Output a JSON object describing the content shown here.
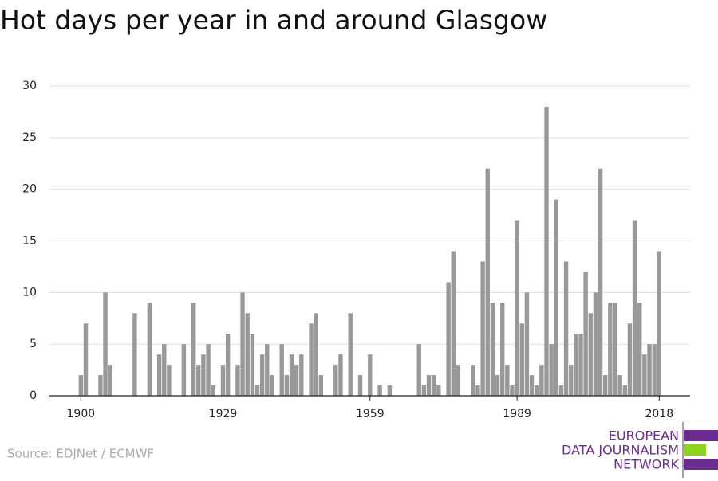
{
  "chart_data": {
    "type": "bar",
    "title": "Hot days per year in and around Glasgow",
    "source": "Source: EDJNet / ECMWF",
    "logo": [
      "EUROPEAN",
      "DATA JOURNALISM",
      "NETWORK"
    ],
    "color": "#999999",
    "grid": true,
    "x": [
      1900,
      1901,
      1902,
      1903,
      1904,
      1905,
      1906,
      1907,
      1908,
      1909,
      1910,
      1911,
      1912,
      1913,
      1914,
      1915,
      1916,
      1917,
      1918,
      1919,
      1920,
      1921,
      1922,
      1923,
      1924,
      1925,
      1926,
      1927,
      1928,
      1929,
      1930,
      1931,
      1932,
      1933,
      1934,
      1935,
      1936,
      1937,
      1938,
      1939,
      1940,
      1941,
      1942,
      1943,
      1944,
      1945,
      1946,
      1947,
      1948,
      1949,
      1950,
      1951,
      1952,
      1953,
      1954,
      1955,
      1956,
      1957,
      1958,
      1959,
      1960,
      1961,
      1962,
      1963,
      1964,
      1965,
      1966,
      1967,
      1968,
      1969,
      1970,
      1971,
      1972,
      1973,
      1974,
      1975,
      1976,
      1977,
      1978,
      1979,
      1980,
      1981,
      1982,
      1983,
      1984,
      1985,
      1986,
      1987,
      1988,
      1989,
      1990,
      1991,
      1992,
      1993,
      1994,
      1995,
      1996,
      1997,
      1998,
      1999,
      2000,
      2001,
      2002,
      2003,
      2004,
      2005,
      2006,
      2007,
      2008,
      2009,
      2010,
      2011,
      2012,
      2013,
      2014,
      2015,
      2016,
      2017,
      2018
    ],
    "values": [
      2,
      7,
      0,
      0,
      2,
      10,
      3,
      0,
      0,
      0,
      0,
      8,
      0,
      0,
      9,
      0,
      4,
      5,
      3,
      0,
      0,
      5,
      0,
      9,
      3,
      4,
      5,
      1,
      0,
      3,
      6,
      0,
      3,
      10,
      8,
      6,
      1,
      4,
      5,
      2,
      0,
      5,
      2,
      4,
      3,
      4,
      0,
      7,
      8,
      2,
      0,
      0,
      3,
      4,
      0,
      8,
      0,
      2,
      0,
      4,
      0,
      1,
      0,
      1,
      0,
      0,
      0,
      0,
      0,
      5,
      1,
      2,
      2,
      1,
      0,
      11,
      14,
      3,
      0,
      0,
      3,
      1,
      13,
      22,
      9,
      2,
      9,
      3,
      1,
      17,
      7,
      10,
      2,
      1,
      3,
      28,
      5,
      19,
      1,
      13,
      3,
      6,
      6,
      12,
      8,
      10,
      22,
      2,
      9,
      9,
      2,
      1,
      7,
      17,
      9,
      4,
      5,
      5,
      14
    ],
    "xlim": [
      1893.6,
      2024.3
    ],
    "xticks": [
      1900,
      1929,
      1959,
      1989,
      2018
    ],
    "ylim": [
      0,
      30
    ],
    "yticks": [
      0,
      5,
      10,
      15,
      20,
      25,
      30
    ]
  }
}
